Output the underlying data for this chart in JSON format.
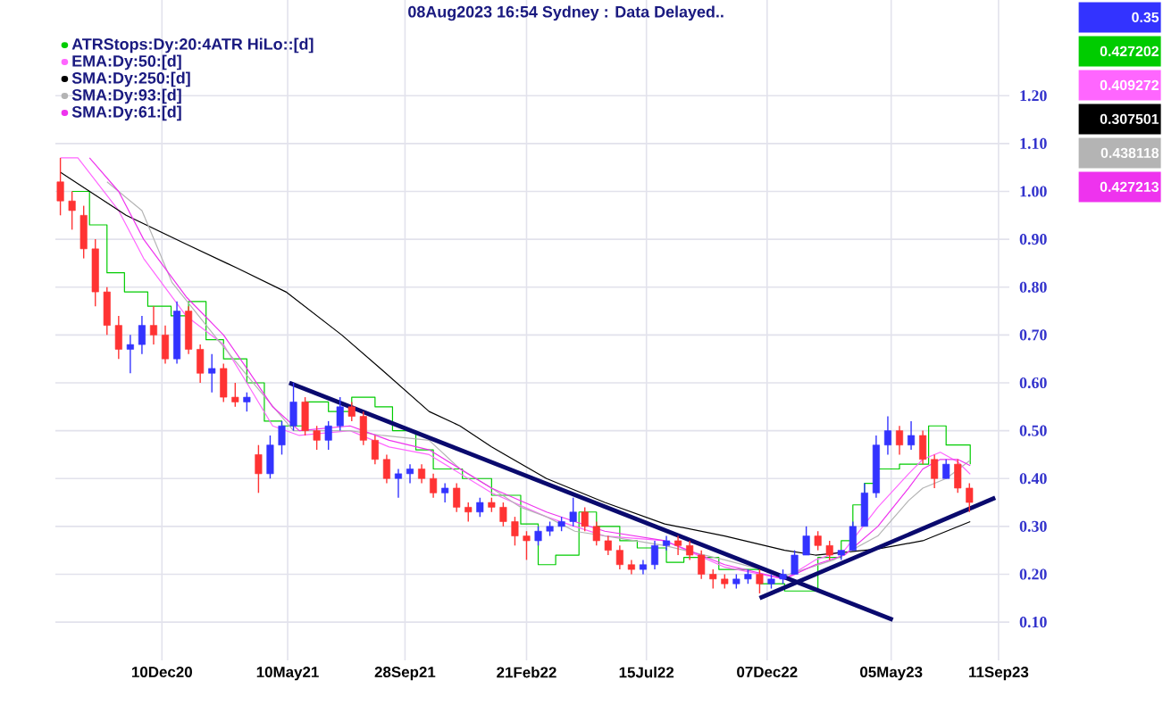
{
  "chart_data": {
    "type": "candlestick",
    "x": [
      "2020-08-10",
      "2020-08-24",
      "2020-09-07",
      "2020-09-21",
      "2020-10-05",
      "2020-10-19",
      "2020-11-02",
      "2020-11-16",
      "2020-11-30",
      "2020-12-14",
      "2020-12-28",
      "2021-01-11",
      "2021-01-25",
      "2021-02-08",
      "2021-02-22",
      "2021-03-08",
      "2021-03-22",
      "2021-04-05",
      "2021-04-19",
      "2021-05-03",
      "2021-05-17",
      "2021-05-31",
      "2021-06-14",
      "2021-06-28",
      "2021-07-12",
      "2021-07-26",
      "2021-08-09",
      "2021-08-23",
      "2021-09-06",
      "2021-09-20",
      "2021-10-04",
      "2021-10-18",
      "2021-11-01",
      "2021-11-15",
      "2021-11-29",
      "2021-12-13",
      "2021-12-27",
      "2022-01-10",
      "2022-01-24",
      "2022-02-07",
      "2022-02-21",
      "2022-03-07",
      "2022-03-21",
      "2022-04-04",
      "2022-04-18",
      "2022-05-02",
      "2022-05-16",
      "2022-05-30",
      "2022-06-13",
      "2022-06-27",
      "2022-07-11",
      "2022-07-25",
      "2022-08-08",
      "2022-08-22",
      "2022-09-05",
      "2022-09-19",
      "2022-10-03",
      "2022-10-17",
      "2022-10-31",
      "2022-11-14",
      "2022-11-28",
      "2022-12-12",
      "2022-12-26",
      "2023-01-09",
      "2023-01-23",
      "2023-02-06",
      "2023-02-20",
      "2023-03-06",
      "2023-03-20",
      "2023-04-03",
      "2023-04-17",
      "2023-05-01",
      "2023-05-15",
      "2023-05-29",
      "2023-06-12",
      "2023-06-26",
      "2023-07-10",
      "2023-07-24",
      "2023-08-07"
    ],
    "ohlc": [
      [
        1.02,
        1.07,
        0.95,
        0.98
      ],
      [
        0.98,
        1.0,
        0.92,
        0.96
      ],
      [
        0.95,
        0.97,
        0.86,
        0.88
      ],
      [
        0.88,
        0.9,
        0.76,
        0.79
      ],
      [
        0.79,
        0.8,
        0.7,
        0.72
      ],
      [
        0.72,
        0.74,
        0.65,
        0.67
      ],
      [
        0.67,
        0.7,
        0.62,
        0.68
      ],
      [
        0.68,
        0.74,
        0.66,
        0.72
      ],
      [
        0.72,
        0.76,
        0.68,
        0.7
      ],
      [
        0.7,
        0.72,
        0.64,
        0.65
      ],
      [
        0.65,
        0.77,
        0.64,
        0.75
      ],
      [
        0.75,
        0.76,
        0.66,
        0.67
      ],
      [
        0.67,
        0.68,
        0.6,
        0.62
      ],
      [
        0.62,
        0.66,
        0.58,
        0.63
      ],
      [
        0.63,
        0.64,
        0.56,
        0.57
      ],
      [
        0.57,
        0.6,
        0.55,
        0.56
      ],
      [
        0.56,
        0.58,
        0.54,
        0.57
      ],
      [
        0.45,
        0.47,
        0.37,
        0.41
      ],
      [
        0.41,
        0.49,
        0.4,
        0.47
      ],
      [
        0.47,
        0.52,
        0.45,
        0.51
      ],
      [
        0.51,
        0.6,
        0.5,
        0.56
      ],
      [
        0.56,
        0.57,
        0.49,
        0.5
      ],
      [
        0.5,
        0.51,
        0.46,
        0.48
      ],
      [
        0.48,
        0.52,
        0.46,
        0.51
      ],
      [
        0.51,
        0.57,
        0.5,
        0.55
      ],
      [
        0.55,
        0.56,
        0.52,
        0.53
      ],
      [
        0.53,
        0.54,
        0.47,
        0.48
      ],
      [
        0.48,
        0.49,
        0.43,
        0.44
      ],
      [
        0.44,
        0.45,
        0.39,
        0.4
      ],
      [
        0.4,
        0.42,
        0.36,
        0.41
      ],
      [
        0.41,
        0.43,
        0.39,
        0.42
      ],
      [
        0.42,
        0.43,
        0.39,
        0.4
      ],
      [
        0.4,
        0.41,
        0.36,
        0.37
      ],
      [
        0.37,
        0.39,
        0.35,
        0.38
      ],
      [
        0.38,
        0.39,
        0.33,
        0.34
      ],
      [
        0.34,
        0.35,
        0.31,
        0.33
      ],
      [
        0.33,
        0.36,
        0.32,
        0.35
      ],
      [
        0.35,
        0.36,
        0.33,
        0.34
      ],
      [
        0.34,
        0.35,
        0.3,
        0.31
      ],
      [
        0.31,
        0.32,
        0.26,
        0.28
      ],
      [
        0.28,
        0.29,
        0.23,
        0.27
      ],
      [
        0.27,
        0.3,
        0.26,
        0.29
      ],
      [
        0.29,
        0.31,
        0.28,
        0.3
      ],
      [
        0.3,
        0.32,
        0.29,
        0.31
      ],
      [
        0.31,
        0.36,
        0.3,
        0.33
      ],
      [
        0.33,
        0.34,
        0.29,
        0.3
      ],
      [
        0.3,
        0.31,
        0.26,
        0.27
      ],
      [
        0.27,
        0.28,
        0.24,
        0.25
      ],
      [
        0.25,
        0.26,
        0.21,
        0.22
      ],
      [
        0.22,
        0.23,
        0.2,
        0.21
      ],
      [
        0.21,
        0.23,
        0.2,
        0.22
      ],
      [
        0.22,
        0.27,
        0.21,
        0.26
      ],
      [
        0.26,
        0.28,
        0.25,
        0.27
      ],
      [
        0.27,
        0.28,
        0.24,
        0.26
      ],
      [
        0.26,
        0.27,
        0.23,
        0.24
      ],
      [
        0.24,
        0.25,
        0.19,
        0.2
      ],
      [
        0.2,
        0.21,
        0.17,
        0.19
      ],
      [
        0.19,
        0.2,
        0.17,
        0.18
      ],
      [
        0.18,
        0.2,
        0.17,
        0.19
      ],
      [
        0.19,
        0.21,
        0.18,
        0.2
      ],
      [
        0.2,
        0.21,
        0.16,
        0.18
      ],
      [
        0.18,
        0.2,
        0.17,
        0.19
      ],
      [
        0.19,
        0.21,
        0.18,
        0.2
      ],
      [
        0.2,
        0.25,
        0.2,
        0.24
      ],
      [
        0.24,
        0.3,
        0.24,
        0.28
      ],
      [
        0.28,
        0.29,
        0.25,
        0.26
      ],
      [
        0.26,
        0.27,
        0.23,
        0.24
      ],
      [
        0.24,
        0.25,
        0.23,
        0.25
      ],
      [
        0.25,
        0.31,
        0.25,
        0.3
      ],
      [
        0.3,
        0.39,
        0.3,
        0.37
      ],
      [
        0.37,
        0.49,
        0.36,
        0.47
      ],
      [
        0.47,
        0.53,
        0.45,
        0.5
      ],
      [
        0.5,
        0.51,
        0.45,
        0.47
      ],
      [
        0.47,
        0.52,
        0.46,
        0.49
      ],
      [
        0.49,
        0.5,
        0.43,
        0.44
      ],
      [
        0.44,
        0.45,
        0.38,
        0.4
      ],
      [
        0.4,
        0.44,
        0.4,
        0.43
      ],
      [
        0.43,
        0.44,
        0.37,
        0.38
      ],
      [
        0.38,
        0.39,
        0.33,
        0.35
      ]
    ],
    "colors": [
      "#ff3333",
      "#ff3333",
      "#ff3333",
      "#ff3333",
      "#ff3333",
      "#ff3333",
      "#3333ff",
      "#3333ff",
      "#ff3333",
      "#ff3333",
      "#3333ff",
      "#ff3333",
      "#ff3333",
      "#3333ff",
      "#ff3333",
      "#ff3333",
      "#3333ff",
      "#ff3333",
      "#3333ff",
      "#3333ff",
      "#3333ff",
      "#ff3333",
      "#ff3333",
      "#3333ff",
      "#3333ff",
      "#ff3333",
      "#ff3333",
      "#ff3333",
      "#ff3333",
      "#3333ff",
      "#3333ff",
      "#ff3333",
      "#ff3333",
      "#3333ff",
      "#ff3333",
      "#ff3333",
      "#3333ff",
      "#ff3333",
      "#ff3333",
      "#ff3333",
      "#ff3333",
      "#3333ff",
      "#3333ff",
      "#3333ff",
      "#3333ff",
      "#ff3333",
      "#ff3333",
      "#ff3333",
      "#ff3333",
      "#ff3333",
      "#3333ff",
      "#3333ff",
      "#3333ff",
      "#ff3333",
      "#ff3333",
      "#ff3333",
      "#ff3333",
      "#ff3333",
      "#3333ff",
      "#3333ff",
      "#ff3333",
      "#3333ff",
      "#3333ff",
      "#3333ff",
      "#3333ff",
      "#ff3333",
      "#ff3333",
      "#3333ff",
      "#3333ff",
      "#3333ff",
      "#3333ff",
      "#3333ff",
      "#ff3333",
      "#3333ff",
      "#ff3333",
      "#ff3333",
      "#3333ff",
      "#ff3333",
      "#ff3333"
    ],
    "series": [
      {
        "name": "ATRStops:Dy:20:4ATR HiLo::[d]",
        "type": "step",
        "color": "#00cc00",
        "x": [
          "2020-08-24",
          "2020-09-14",
          "2020-10-05",
          "2020-10-26",
          "2020-11-23",
          "2020-12-21",
          "2021-01-11",
          "2021-02-01",
          "2021-02-22",
          "2021-03-22",
          "2021-04-12",
          "2021-05-03",
          "2021-05-31",
          "2021-06-28",
          "2021-07-26",
          "2021-08-23",
          "2021-09-13",
          "2021-10-11",
          "2021-11-01",
          "2021-12-06",
          "2022-01-10",
          "2022-02-14",
          "2022-03-07",
          "2022-03-28",
          "2022-04-25",
          "2022-05-16",
          "2022-06-13",
          "2022-07-04",
          "2022-08-08",
          "2022-08-29",
          "2022-10-10",
          "2022-11-28",
          "2022-12-28",
          "2023-02-06",
          "2023-03-06",
          "2023-03-20",
          "2023-04-03",
          "2023-04-17",
          "2023-05-15",
          "2023-06-19",
          "2023-07-10",
          "2023-08-08"
        ],
        "values": [
          1.0,
          0.93,
          0.83,
          0.79,
          0.76,
          0.74,
          0.77,
          0.69,
          0.65,
          0.6,
          0.52,
          0.51,
          0.56,
          0.54,
          0.57,
          0.55,
          0.5,
          0.46,
          0.42,
          0.4,
          0.365,
          0.305,
          0.22,
          0.24,
          0.33,
          0.3,
          0.27,
          0.255,
          0.225,
          0.235,
          0.21,
          0.18,
          0.165,
          0.235,
          0.27,
          0.345,
          0.39,
          0.42,
          0.43,
          0.51,
          0.47,
          0.43
        ]
      },
      {
        "name": "EMA:Dy:50:[d]",
        "type": "line",
        "color": "#ff66ff",
        "x": [
          "2020-08-10",
          "2020-08-31",
          "2020-10-19",
          "2020-11-18",
          "2021-01-08",
          "2021-02-22",
          "2021-03-22",
          "2021-04-22",
          "2021-05-24",
          "2021-07-24",
          "2021-09-09",
          "2021-10-27",
          "2022-01-10",
          "2022-03-17",
          "2022-04-20",
          "2022-05-26",
          "2022-08-06",
          "2022-10-17",
          "2022-12-28",
          "2023-02-03",
          "2023-03-10",
          "2023-04-19",
          "2023-05-26",
          "2023-06-12",
          "2023-07-03",
          "2023-07-24",
          "2023-08-08"
        ],
        "values": [
          1.07,
          1.07,
          0.96,
          0.86,
          0.74,
          0.68,
          0.6,
          0.51,
          0.49,
          0.5,
          0.466,
          0.45,
          0.37,
          0.32,
          0.3,
          0.28,
          0.27,
          0.215,
          0.19,
          0.23,
          0.25,
          0.34,
          0.41,
          0.44,
          0.455,
          0.435,
          0.409
        ]
      },
      {
        "name": "SMA:Dy:250:[d]",
        "type": "line",
        "color": "#000000",
        "x": [
          "2020-08-10",
          "2020-10-28",
          "2021-01-08",
          "2021-03-10",
          "2021-05-08",
          "2021-07-14",
          "2021-09-01",
          "2021-10-27",
          "2021-12-03",
          "2022-01-10",
          "2022-03-17",
          "2022-05-26",
          "2022-08-06",
          "2022-10-17",
          "2022-12-28",
          "2023-02-03",
          "2023-04-19",
          "2023-06-12",
          "2023-08-08"
        ],
        "values": [
          1.04,
          0.95,
          0.89,
          0.84,
          0.79,
          0.7,
          0.626,
          0.54,
          0.51,
          0.466,
          0.4,
          0.35,
          0.305,
          0.28,
          0.25,
          0.24,
          0.253,
          0.27,
          0.31
        ]
      },
      {
        "name": "SMA:Dy:93:[d]",
        "type": "line",
        "color": "#b4b4b4",
        "x": [
          "2020-10-05",
          "2020-11-16",
          "2020-12-22",
          "2021-02-15",
          "2021-04-08",
          "2021-05-17",
          "2021-07-24",
          "2021-09-01",
          "2021-10-27",
          "2021-12-03",
          "2022-01-10",
          "2022-02-14",
          "2022-03-17",
          "2022-04-20",
          "2022-07-01",
          "2022-08-06",
          "2022-10-17",
          "2022-12-28",
          "2023-02-25",
          "2023-04-19",
          "2023-05-26",
          "2023-06-12",
          "2023-07-10",
          "2023-08-08"
        ],
        "values": [
          1.02,
          0.96,
          0.81,
          0.69,
          0.58,
          0.5,
          0.5,
          0.49,
          0.48,
          0.42,
          0.38,
          0.34,
          0.32,
          0.29,
          0.27,
          0.26,
          0.23,
          0.197,
          0.23,
          0.28,
          0.354,
          0.38,
          0.4,
          0.438
        ]
      },
      {
        "name": "SMA:Dy:61:[d]",
        "type": "line",
        "color": "#ee33ee",
        "x": [
          "2020-09-14",
          "2020-10-19",
          "2020-11-18",
          "2021-01-08",
          "2021-02-22",
          "2021-03-22",
          "2021-04-22",
          "2021-05-24",
          "2021-07-24",
          "2021-09-09",
          "2021-10-27",
          "2022-01-10",
          "2022-03-17",
          "2022-04-20",
          "2022-05-26",
          "2022-08-06",
          "2022-10-17",
          "2022-12-28",
          "2023-02-03",
          "2023-03-10",
          "2023-04-19",
          "2023-05-26",
          "2023-06-12",
          "2023-07-03",
          "2023-07-24",
          "2023-08-08"
        ],
        "values": [
          1.07,
          1.0,
          0.9,
          0.78,
          0.7,
          0.63,
          0.55,
          0.5,
          0.51,
          0.48,
          0.46,
          0.38,
          0.33,
          0.31,
          0.29,
          0.27,
          0.22,
          0.19,
          0.22,
          0.24,
          0.3,
          0.38,
          0.42,
          0.44,
          0.44,
          0.427
        ]
      },
      {
        "type": "line",
        "color": "#0a0a6e",
        "x": [
          "2021-05-12",
          "2023-05-07"
        ],
        "values": [
          0.6,
          0.105
        ]
      },
      {
        "type": "line",
        "color": "#0a0a6e",
        "x": [
          "2022-11-28",
          "2023-09-07"
        ],
        "values": [
          0.15,
          0.36
        ]
      }
    ],
    "xlim": [
      "2020-08-04",
      "2023-09-24"
    ],
    "xticks": [
      {
        "value": "2020-12-10",
        "label": "10Dec20"
      },
      {
        "value": "2021-05-10",
        "label": "10May21"
      },
      {
        "value": "2021-09-28",
        "label": "28Sep21"
      },
      {
        "value": "2022-02-21",
        "label": "21Feb22"
      },
      {
        "value": "2022-07-15",
        "label": "15Jul22"
      },
      {
        "value": "2022-12-07",
        "label": "07Dec22"
      },
      {
        "value": "2023-05-05",
        "label": "05May23"
      },
      {
        "value": "2023-09-11",
        "label": "11Sep23"
      }
    ],
    "ylim": [
      0.02,
      1.4
    ],
    "yticks": [
      {
        "value": 0.1,
        "label": "0.10"
      },
      {
        "value": 0.2,
        "label": "0.20"
      },
      {
        "value": 0.3,
        "label": "0.30"
      },
      {
        "value": 0.4,
        "label": "0.40"
      },
      {
        "value": 0.5,
        "label": "0.50"
      },
      {
        "value": 0.6,
        "label": "0.60"
      },
      {
        "value": 0.7,
        "label": "0.70"
      },
      {
        "value": 0.8,
        "label": "0.80"
      },
      {
        "value": 0.9,
        "label": "0.90"
      },
      {
        "value": 1.0,
        "label": "1.00"
      },
      {
        "value": 1.1,
        "label": "1.10"
      },
      {
        "value": 1.2,
        "label": "1.20"
      }
    ],
    "grid": true,
    "legend": "top left",
    "annotations": [
      "08Aug2023 16:54 Sydney : Data Delayed..",
      "0.35",
      "0.427202",
      "0.409272",
      "0.307501",
      "0.438118",
      "0.427213"
    ]
  }
}
